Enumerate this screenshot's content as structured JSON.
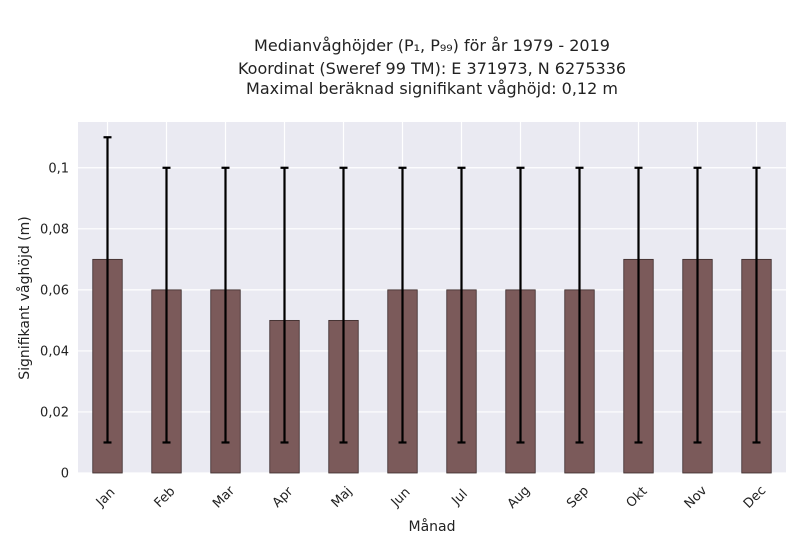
{
  "chart_data": {
    "type": "bar",
    "title_lines": [
      "Medianvåghöjder (P₁, P₉₉) för år 1979 - 2019",
      "Koordinat (Sweref 99 TM): E 371973, N 6275336",
      "Maximal beräknad signifikant våghöjd: 0,12 m"
    ],
    "xlabel": "Månad",
    "ylabel": "Signifikant våghöjd (m)",
    "categories": [
      "Jan",
      "Feb",
      "Mar",
      "Apr",
      "Maj",
      "Jun",
      "Jul",
      "Aug",
      "Sep",
      "Okt",
      "Nov",
      "Dec"
    ],
    "values": [
      0.07,
      0.06,
      0.06,
      0.05,
      0.05,
      0.06,
      0.06,
      0.06,
      0.06,
      0.07,
      0.07,
      0.07
    ],
    "error_low": [
      0.01,
      0.01,
      0.01,
      0.01,
      0.01,
      0.01,
      0.01,
      0.01,
      0.01,
      0.01,
      0.01,
      0.01
    ],
    "error_high": [
      0.11,
      0.1,
      0.1,
      0.1,
      0.1,
      0.1,
      0.1,
      0.1,
      0.1,
      0.1,
      0.1,
      0.1
    ],
    "ylim": [
      0,
      0.115
    ],
    "yticks": [
      0,
      0.02,
      0.04,
      0.06,
      0.08,
      0.1
    ],
    "ytick_labels": [
      "0",
      "0,02",
      "0,04",
      "0,06",
      "0,08",
      "0,1"
    ],
    "grid": true,
    "colors": {
      "bar_fill": "#7b5a5a",
      "bar_edge": "#3a2a2a",
      "error_bar": "#000000",
      "plot_bg": "#eaeaf2",
      "grid": "#ffffff"
    }
  }
}
